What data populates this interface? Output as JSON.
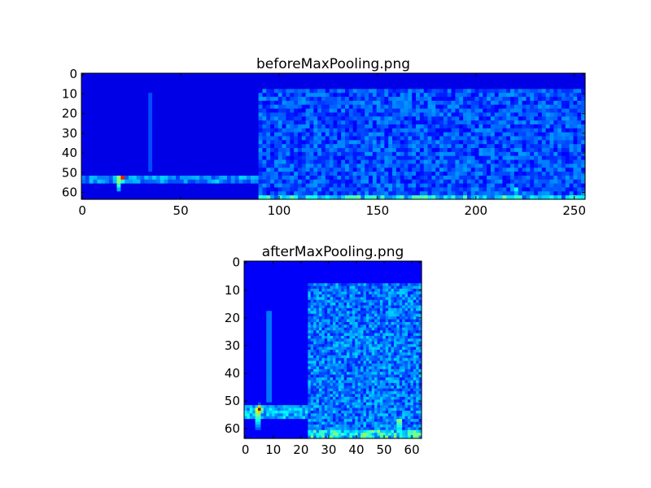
{
  "chart_data": [
    {
      "type": "heatmap",
      "title": "beforeMaxPooling.png",
      "colormap": "jet",
      "columns": 256,
      "rows": 64,
      "xlim": [
        -0.5,
        255.5
      ],
      "ylim": [
        63.5,
        -0.5
      ],
      "xticks": [
        0,
        50,
        100,
        150,
        200,
        250
      ],
      "yticks": [
        0,
        10,
        20,
        30,
        40,
        50,
        60
      ],
      "features": [
        {
          "kind": "background",
          "value": 0.1
        },
        {
          "kind": "region",
          "x": [
            90,
            255
          ],
          "y": [
            8,
            63
          ],
          "value": 0.2
        },
        {
          "kind": "horizontal-band",
          "x": [
            0,
            90
          ],
          "y": [
            52,
            56
          ],
          "value": 0.26
        },
        {
          "kind": "vertical-line",
          "x": 34,
          "y": [
            10,
            50
          ],
          "value": 0.2
        },
        {
          "kind": "hotspot",
          "x": 20,
          "y": 53,
          "value": 1.0
        },
        {
          "kind": "streak",
          "x": 19,
          "y": [
            53,
            60
          ],
          "value": 0.6
        },
        {
          "kind": "streak",
          "x": 221,
          "y": [
            57,
            63
          ],
          "value": 0.45
        },
        {
          "kind": "bottom-row",
          "x": [
            90,
            255
          ],
          "y": [
            61,
            63
          ],
          "value": 0.32
        }
      ]
    },
    {
      "type": "heatmap",
      "title": "afterMaxPooling.png",
      "colormap": "jet",
      "columns": 64,
      "rows": 64,
      "xlim": [
        -0.5,
        63.5
      ],
      "ylim": [
        63.5,
        -0.5
      ],
      "xticks": [
        0,
        10,
        20,
        30,
        40,
        50,
        60
      ],
      "yticks": [
        0,
        10,
        20,
        30,
        40,
        50,
        60
      ],
      "features": [
        {
          "kind": "background",
          "value": 0.12
        },
        {
          "kind": "region",
          "x": [
            22.5,
            63
          ],
          "y": [
            8,
            63
          ],
          "value": 0.24
        },
        {
          "kind": "horizontal-band",
          "x": [
            0,
            22.5
          ],
          "y": [
            52,
            56
          ],
          "value": 0.3
        },
        {
          "kind": "vertical-line",
          "x": 8.5,
          "y": [
            18,
            50
          ],
          "value": 0.24
        },
        {
          "kind": "hotspot",
          "x": 5,
          "y": 53,
          "value": 1.0
        },
        {
          "kind": "streak",
          "x": 4.5,
          "y": [
            53,
            60
          ],
          "value": 0.6
        },
        {
          "kind": "streak",
          "x": 55.5,
          "y": [
            57,
            63
          ],
          "value": 0.5
        },
        {
          "kind": "bottom-row",
          "x": [
            22.5,
            63
          ],
          "y": [
            61,
            63
          ],
          "value": 0.36
        }
      ]
    }
  ]
}
